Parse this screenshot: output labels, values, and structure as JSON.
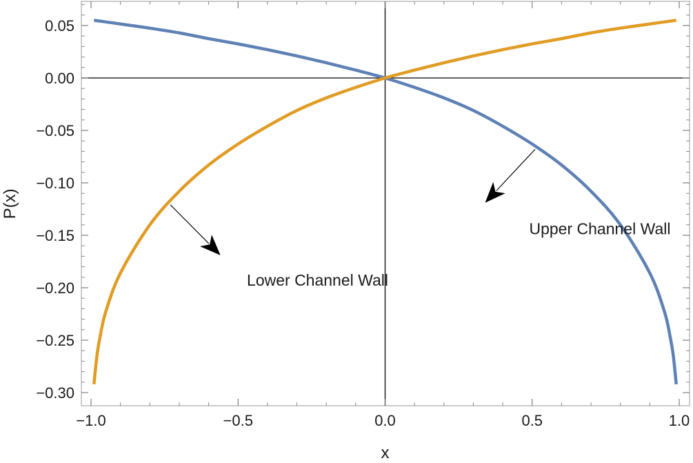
{
  "chart_data": {
    "type": "line",
    "title": "",
    "xlabel": "x",
    "ylabel": "P(x)",
    "xlim": [
      -1.0,
      1.0
    ],
    "ylim": [
      -0.31,
      0.072
    ],
    "grid": false,
    "x_ticks": [
      {
        "value": -1.0,
        "label": "−1.0"
      },
      {
        "value": -0.5,
        "label": "−0.5"
      },
      {
        "value": 0.0,
        "label": "0.0"
      },
      {
        "value": 0.5,
        "label": "0.5"
      },
      {
        "value": 1.0,
        "label": "1.0"
      }
    ],
    "y_ticks": [
      {
        "value": 0.05,
        "label": "0.05"
      },
      {
        "value": 0.0,
        "label": "0.00"
      },
      {
        "value": -0.05,
        "label": "−0.05"
      },
      {
        "value": -0.1,
        "label": "−0.10"
      },
      {
        "value": -0.15,
        "label": "−0.15"
      },
      {
        "value": -0.2,
        "label": "−0.20"
      },
      {
        "value": -0.25,
        "label": "−0.25"
      },
      {
        "value": -0.3,
        "label": "−0.30"
      }
    ],
    "series": [
      {
        "key": "upper",
        "color": "#5E81B5",
        "x": [
          -0.99,
          -0.9,
          -0.8,
          -0.7,
          -0.6,
          -0.5,
          -0.4,
          -0.3,
          -0.2,
          -0.1,
          0.0,
          0.1,
          0.2,
          0.3,
          0.4,
          0.5,
          0.6,
          0.7,
          0.8,
          0.9,
          0.95,
          0.97,
          0.98,
          0.99
        ],
        "y": [
          0.055,
          0.0515,
          0.0475,
          0.043,
          0.0375,
          0.0325,
          0.027,
          0.021,
          0.0145,
          0.0075,
          0.0,
          -0.009,
          -0.019,
          -0.031,
          -0.046,
          -0.063,
          -0.083,
          -0.108,
          -0.14,
          -0.186,
          -0.223,
          -0.248,
          -0.265,
          -0.292
        ]
      },
      {
        "key": "lower",
        "color": "#E19C24",
        "x": [
          -0.99,
          -0.98,
          -0.97,
          -0.95,
          -0.9,
          -0.8,
          -0.7,
          -0.6,
          -0.5,
          -0.4,
          -0.3,
          -0.2,
          -0.1,
          0.0,
          0.1,
          0.2,
          0.3,
          0.4,
          0.5,
          0.6,
          0.7,
          0.8,
          0.9,
          0.99
        ],
        "y": [
          -0.292,
          -0.265,
          -0.248,
          -0.223,
          -0.186,
          -0.14,
          -0.108,
          -0.083,
          -0.063,
          -0.046,
          -0.031,
          -0.019,
          -0.009,
          0.0,
          0.0075,
          0.0145,
          0.021,
          0.027,
          0.0325,
          0.0375,
          0.043,
          0.0475,
          0.0515,
          0.055
        ]
      }
    ],
    "annotations": [
      {
        "key": "upper",
        "text": "Upper Channel Wall",
        "points_to": {
          "x": 0.51,
          "y": -0.068
        },
        "arrow_end": {
          "x": 0.34,
          "y": -0.119
        },
        "label_at": {
          "x": 0.49,
          "y": -0.149
        }
      },
      {
        "key": "lower",
        "text": "Lower Channel Wall",
        "points_to": {
          "x": -0.73,
          "y": -0.121
        },
        "arrow_end": {
          "x": -0.56,
          "y": -0.169
        },
        "label_at": {
          "x": -0.47,
          "y": -0.198
        }
      }
    ]
  }
}
